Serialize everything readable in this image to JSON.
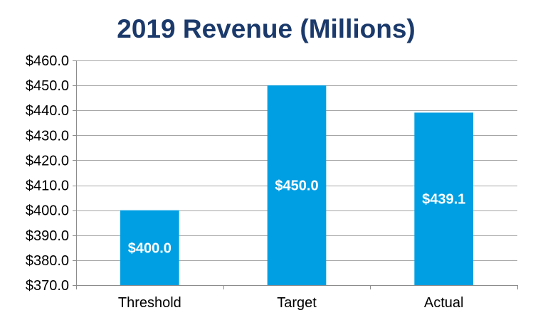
{
  "chart_data": {
    "type": "bar",
    "title": "2019 Revenue (Millions)",
    "xlabel": "",
    "ylabel": "",
    "categories": [
      "Threshold",
      "Target",
      "Actual"
    ],
    "values": [
      400.0,
      450.0,
      439.1
    ],
    "data_labels": [
      "$400.0",
      "$450.0",
      "$439.1"
    ],
    "ylim": [
      370,
      460
    ],
    "y_ticks": [
      370,
      380,
      390,
      400,
      410,
      420,
      430,
      440,
      450,
      460
    ],
    "y_tick_labels": [
      "$370.0",
      "$380.0",
      "$390.0",
      "$400.0",
      "$410.0",
      "$420.0",
      "$430.0",
      "$440.0",
      "$450.0",
      "$460.0"
    ],
    "grid": true,
    "legend": "none"
  },
  "colors": {
    "bar": "#009FE3",
    "title": "#1B3A6B",
    "grid": "#A6A6A6",
    "axis": "#8C8C8C",
    "data_label": "#FFFFFF"
  }
}
